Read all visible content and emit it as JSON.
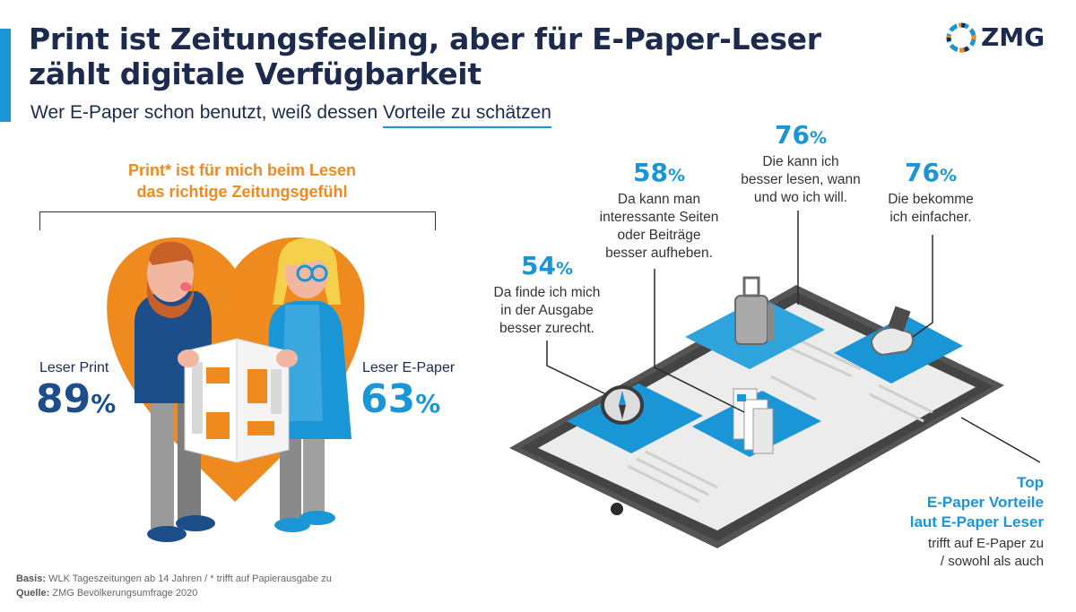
{
  "header": {
    "title_line1": "Print ist Zeitungsfeeling, aber für E-Paper-Leser",
    "title_line2": "zählt digitale Verfügbarkeit",
    "subtitle_plain": "Wer E-Paper schon benutzt, weiß dessen ",
    "subtitle_underlined": "Vorteile zu schätzen"
  },
  "logo": {
    "text": "ZMG",
    "icon": "zmg-ring-logo"
  },
  "left_panel": {
    "heading_line1": "Print* ist für mich beim Lesen",
    "heading_line2": "das richtige Zeitungsgefühl",
    "print": {
      "label": "Leser Print",
      "value": "89",
      "unit": "%"
    },
    "epaper": {
      "label": "Leser E-Paper",
      "value": "63",
      "unit": "%"
    },
    "colors": {
      "heart": "#ee8a1e",
      "epaper": "#1a96d6",
      "print": "#1c4f8a"
    }
  },
  "benefits": [
    {
      "value": "54",
      "unit": "%",
      "lines": [
        "Da finde ich mich",
        "in der Ausgabe",
        "besser zurecht."
      ],
      "icon": "compass-icon"
    },
    {
      "value": "58",
      "unit": "%",
      "lines": [
        "Da kann man",
        "interessante Seiten",
        "oder Beiträge",
        "besser aufheben."
      ],
      "icon": "newspaper-stack-icon"
    },
    {
      "value": "76",
      "unit": "%",
      "lines": [
        "Die kann ich",
        "besser lesen, wann",
        "und wo ich will."
      ],
      "icon": "suitcase-icon"
    },
    {
      "value": "76",
      "unit": "%",
      "lines": [
        "Die bekomme",
        "ich einfacher."
      ],
      "icon": "hand-icon"
    }
  ],
  "legend": {
    "title_lines": [
      "Top",
      "E-Paper Vorteile",
      "laut E-Paper Leser"
    ],
    "note_lines": [
      "trifft auf E-Paper zu",
      "/ sowohl als auch"
    ]
  },
  "footer": {
    "basis_label": "Basis:",
    "basis_text": " WLK Tageszeitungen ab 14 Jahren / * trifft auf Papierausgabe zu",
    "source_label": "Quelle:",
    "source_text": " ZMG Bevölkerungsumfrage 2020"
  }
}
